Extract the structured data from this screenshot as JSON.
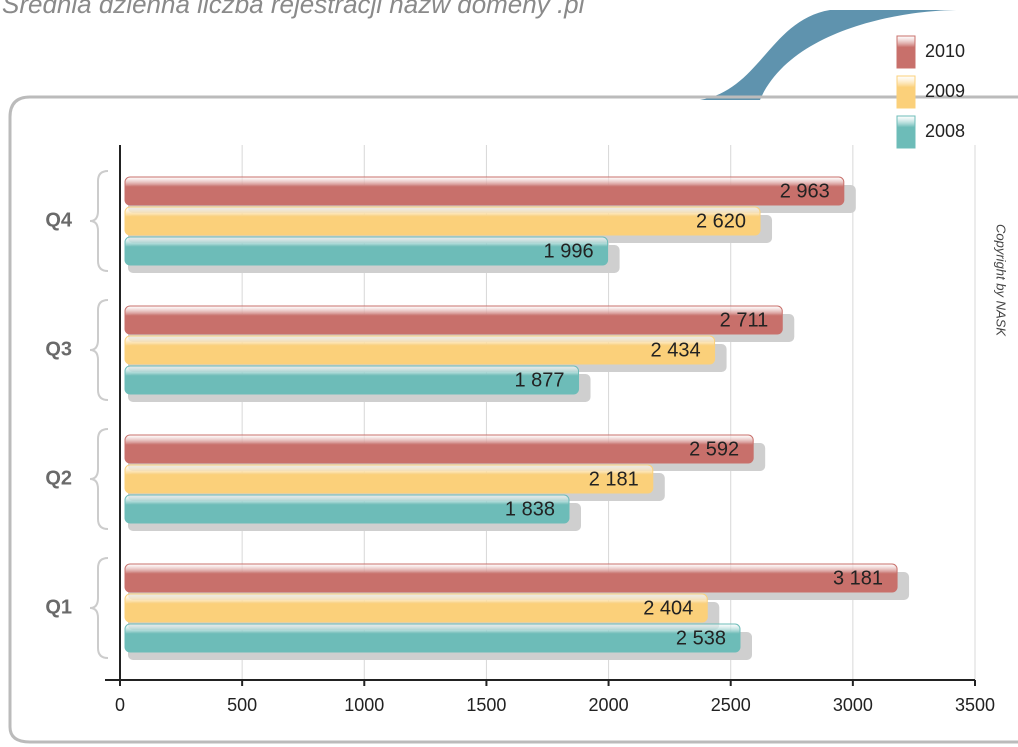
{
  "chart_data": {
    "type": "bar",
    "orientation": "horizontal",
    "title": "Średnia dzienna liczba rejestracji nazw domeny .pl",
    "note": "Copyright by NASK",
    "categories": [
      "Q1",
      "Q2",
      "Q3",
      "Q4"
    ],
    "series": [
      {
        "name": "2010",
        "color": "#c8706b",
        "values": [
          3181,
          2592,
          2711,
          2963
        ],
        "value_labels": [
          "3 181",
          "2 592",
          "2 711",
          "2 963"
        ]
      },
      {
        "name": "2009",
        "color": "#fbd07a",
        "values": [
          2404,
          2181,
          2434,
          2620
        ],
        "value_labels": [
          "2 404",
          "2 181",
          "2 434",
          "2 620"
        ]
      },
      {
        "name": "2008",
        "color": "#6dbcb8",
        "values": [
          2538,
          1838,
          1877,
          1996
        ],
        "value_labels": [
          "2 538",
          "1 838",
          "1 877",
          "1 996"
        ]
      }
    ],
    "xlim": [
      0,
      3500
    ],
    "xticks": [
      0,
      500,
      1000,
      1500,
      2000,
      2500,
      3000,
      3500
    ],
    "grid": true
  }
}
